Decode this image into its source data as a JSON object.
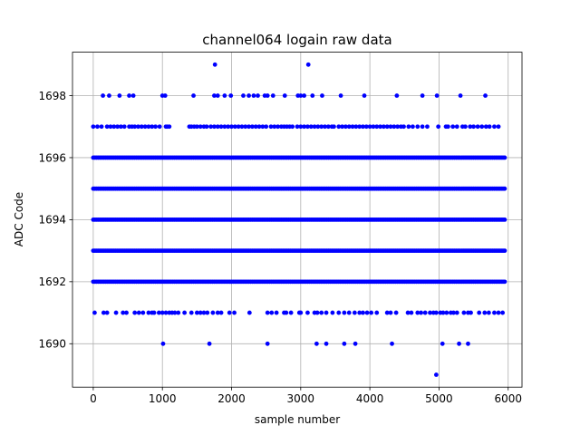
{
  "chart_data": {
    "type": "scatter",
    "title": "channel064 logain raw data",
    "xlabel": "sample number",
    "ylabel": "ADC Code",
    "xlim": [
      -300,
      6200
    ],
    "ylim": [
      1688.6,
      1699.4
    ],
    "xticks": [
      0,
      1000,
      2000,
      3000,
      4000,
      5000,
      6000
    ],
    "yticks": [
      1690,
      1692,
      1694,
      1696,
      1698
    ],
    "grid": true,
    "marker_color": "#0000ff",
    "x_range": [
      0,
      5950
    ],
    "dense_levels": [
      1692,
      1693,
      1694,
      1695,
      1696
    ],
    "sparse_levels": {
      "1697": [
        0,
        60,
        120,
        200,
        250,
        300,
        350,
        400,
        450,
        520,
        560,
        600,
        650,
        700,
        750,
        800,
        850,
        900,
        960,
        1050,
        1070,
        1100,
        1390,
        1420,
        1460,
        1500,
        1550,
        1600,
        1640,
        1700,
        1750,
        1800,
        1850,
        1900,
        1950,
        2000,
        2050,
        2100,
        2150,
        2200,
        2250,
        2300,
        2350,
        2400,
        2450,
        2500,
        2570,
        2620,
        2670,
        2720,
        2760,
        2800,
        2840,
        2880,
        2950,
        3000,
        3050,
        3100,
        3150,
        3200,
        3250,
        3300,
        3350,
        3400,
        3450,
        3480,
        3550,
        3600,
        3650,
        3700,
        3750,
        3800,
        3850,
        3900,
        3950,
        4000,
        4050,
        4100,
        4150,
        4200,
        4250,
        4300,
        4350,
        4400,
        4450,
        4490,
        4560,
        4620,
        4690,
        4760,
        4830,
        4990,
        5100,
        5130,
        5200,
        5260,
        5340,
        5380,
        5450,
        5500,
        5560,
        5620,
        5680,
        5730,
        5800,
        5860
      ],
      "1698": [
        140,
        230,
        380,
        520,
        580,
        1000,
        1040,
        1450,
        1750,
        1800,
        1900,
        1990,
        2170,
        2250,
        2320,
        2380,
        2480,
        2520,
        2600,
        2770,
        2960,
        3000,
        3050,
        3170,
        3310,
        3580,
        3920,
        4390,
        4760,
        4970,
        5310,
        5670
      ],
      "1699": [
        1760,
        3110
      ],
      "1691": [
        20,
        150,
        200,
        330,
        430,
        480,
        600,
        660,
        720,
        800,
        850,
        880,
        950,
        1000,
        1050,
        1100,
        1140,
        1180,
        1230,
        1320,
        1420,
        1500,
        1550,
        1600,
        1650,
        1730,
        1800,
        1850,
        1970,
        2040,
        2260,
        2520,
        2580,
        2650,
        2760,
        2790,
        2860,
        2980,
        3000,
        3100,
        3200,
        3240,
        3300,
        3370,
        3460,
        3550,
        3630,
        3700,
        3780,
        3850,
        3900,
        3960,
        4020,
        4100,
        4250,
        4300,
        4380,
        4550,
        4600,
        4690,
        4740,
        4800,
        4870,
        4920,
        4960,
        5020,
        5060,
        5110,
        5170,
        5210,
        5260,
        5360,
        5420,
        5460,
        5580,
        5660,
        5720,
        5800,
        5860,
        5920
      ],
      "1690": [
        1010,
        1680,
        2520,
        3230,
        3370,
        3630,
        3790,
        4320,
        5050,
        5290,
        5420
      ],
      "1689": [
        4960
      ]
    }
  }
}
